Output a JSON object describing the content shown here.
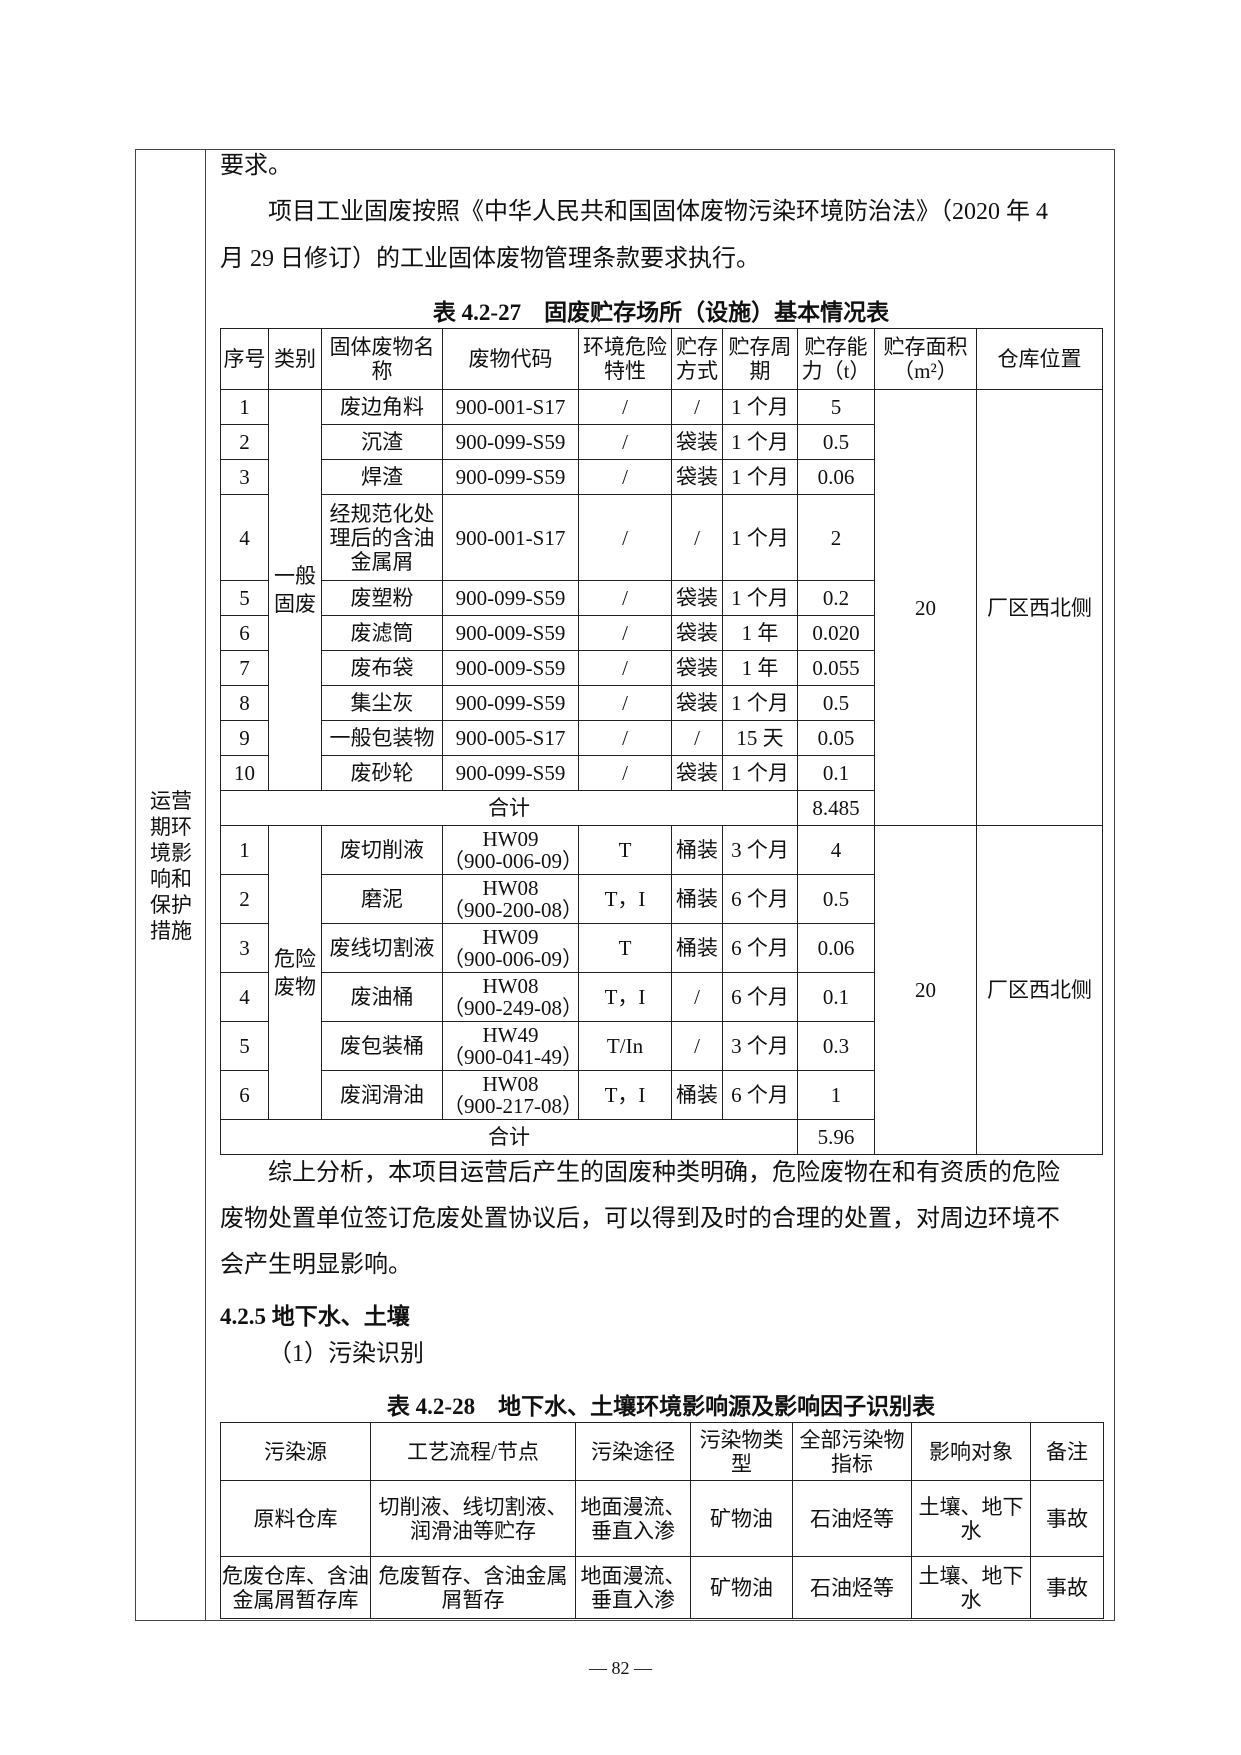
{
  "side_label": [
    "运营",
    "期环",
    "境影",
    "响和",
    "保护",
    "措施"
  ],
  "paragraphs": {
    "p1": "要求。",
    "p2_line1": "项目工业固废按照《中华人民共和国固体废物污染环境防治法》（2020 年 4",
    "p2_line2": "月 29 日修订）的工业固体废物管理条款要求执行。",
    "p3_line1": "综上分析，本项目运营后产生的固废种类明确，危险废物在和有资质的危险",
    "p3_line2": "废物处置单位签订危废处置协议后，可以得到及时的合理的处置，对周边环境不",
    "p3_line3": "会产生明显影响。",
    "heading": "4.2.5 地下水、土壤",
    "sub": "（1）污染识别"
  },
  "table1": {
    "caption": "表 4.2-27　固废贮存场所（设施）基本情况表",
    "headers": [
      "序号",
      "类别",
      "固体废物名称",
      "废物代码",
      "环境危险特性",
      "贮存方式",
      "贮存周期",
      "贮存能力（t）",
      "贮存面积（m²）",
      "仓库位置"
    ],
    "general": {
      "category": "一般固废",
      "area": "20",
      "location": "厂区西北侧",
      "rows": [
        [
          "1",
          "废边角料",
          "900-001-S17",
          "/",
          "/",
          "1 个月",
          "5"
        ],
        [
          "2",
          "沉渣",
          "900-099-S59",
          "/",
          "袋装",
          "1 个月",
          "0.5"
        ],
        [
          "3",
          "焊渣",
          "900-099-S59",
          "/",
          "袋装",
          "1 个月",
          "0.06"
        ],
        [
          "4",
          "经规范化处理后的含油金属屑",
          "900-001-S17",
          "/",
          "/",
          "1 个月",
          "2"
        ],
        [
          "5",
          "废塑粉",
          "900-099-S59",
          "/",
          "袋装",
          "1 个月",
          "0.2"
        ],
        [
          "6",
          "废滤筒",
          "900-009-S59",
          "/",
          "袋装",
          "1 年",
          "0.020"
        ],
        [
          "7",
          "废布袋",
          "900-009-S59",
          "/",
          "袋装",
          "1 年",
          "0.055"
        ],
        [
          "8",
          "集尘灰",
          "900-099-S59",
          "/",
          "袋装",
          "1 个月",
          "0.5"
        ],
        [
          "9",
          "一般包装物",
          "900-005-S17",
          "/",
          "/",
          "15 天",
          "0.05"
        ],
        [
          "10",
          "废砂轮",
          "900-099-S59",
          "/",
          "袋装",
          "1 个月",
          "0.1"
        ]
      ],
      "total_label": "合计",
      "total": "8.485"
    },
    "hazardous": {
      "category": "危险废物",
      "area": "20",
      "location": "厂区西北侧",
      "rows": [
        [
          "1",
          "废切削液",
          "HW09",
          "（900-006-09）",
          "T",
          "桶装",
          "3 个月",
          "4"
        ],
        [
          "2",
          "磨泥",
          "HW08",
          "（900-200-08）",
          "T，I",
          "桶装",
          "6 个月",
          "0.5"
        ],
        [
          "3",
          "废线切割液",
          "HW09",
          "（900-006-09）",
          "T",
          "桶装",
          "6 个月",
          "0.06"
        ],
        [
          "4",
          "废油桶",
          "HW08",
          "（900-249-08）",
          "T，I",
          "/",
          "6 个月",
          "0.1"
        ],
        [
          "5",
          "废包装桶",
          "HW49",
          "（900-041-49）",
          "T/In",
          "/",
          "3 个月",
          "0.3"
        ],
        [
          "6",
          "废润滑油",
          "HW08",
          "（900-217-08）",
          "T，I",
          "桶装",
          "6 个月",
          "1"
        ]
      ],
      "total_label": "合计",
      "total": "5.96"
    }
  },
  "table2": {
    "caption": "表 4.2-28　地下水、土壤环境影响源及影响因子识别表",
    "headers": [
      "污染源",
      "工艺流程/节点",
      "污染途径",
      "污染物类型",
      "全部污染物指标",
      "影响对象",
      "备注"
    ],
    "rows": [
      [
        "原料仓库",
        "切削液、线切割液、润滑油等贮存",
        "地面漫流、垂直入渗",
        "矿物油",
        "石油烃等",
        "土壤、地下水",
        "事故"
      ],
      [
        "危废仓库、含油金属屑暂存库",
        "危废暂存、含油金属屑暂存",
        "地面漫流、垂直入渗",
        "矿物油",
        "石油烃等",
        "土壤、地下水",
        "事故"
      ]
    ]
  },
  "page_number": "— 82 —"
}
